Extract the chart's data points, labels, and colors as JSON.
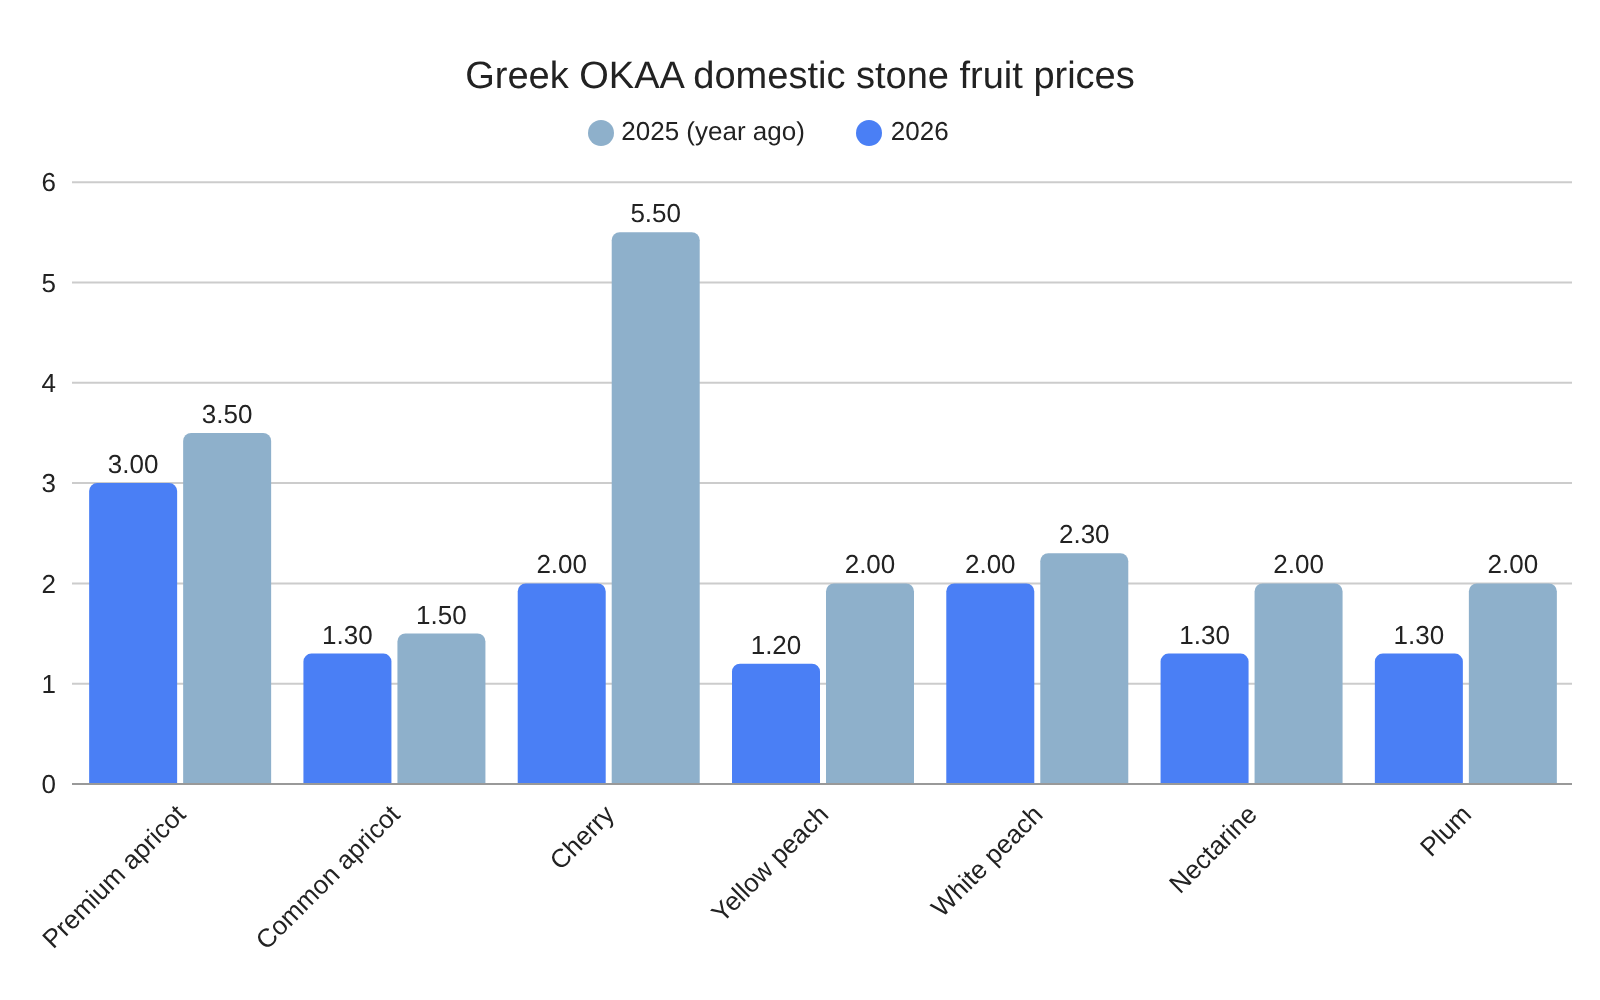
{
  "chart_data": {
    "type": "bar",
    "title": "Greek OKAA domestic stone fruit prices",
    "categories": [
      "Premium apricot",
      "Common apricot",
      "Cherry",
      "Yellow peach",
      "White peach",
      "Nectarine",
      "Plum"
    ],
    "series": [
      {
        "name": "2026",
        "color": "#4a7ff5",
        "values": [
          3,
          1.3,
          2,
          1.2,
          2,
          1.3,
          1.3
        ],
        "value_labels": [
          "3.00",
          "1.30",
          "2.00",
          "1.20",
          "2.00",
          "1.30",
          "1.30"
        ]
      },
      {
        "name": "2025 (year ago)",
        "color": "#8eb0cb",
        "values": [
          3.5,
          1.5,
          5.5,
          2,
          2.3,
          2,
          2
        ],
        "value_labels": [
          "3.50",
          "1.50",
          "5.50",
          "2.00",
          "2.30",
          "2.00",
          "2.00"
        ]
      }
    ],
    "ylim": [
      0,
      6
    ],
    "yticks": [
      0,
      1,
      2,
      3,
      4,
      5,
      6
    ],
    "grid": "y",
    "legend": "top"
  }
}
